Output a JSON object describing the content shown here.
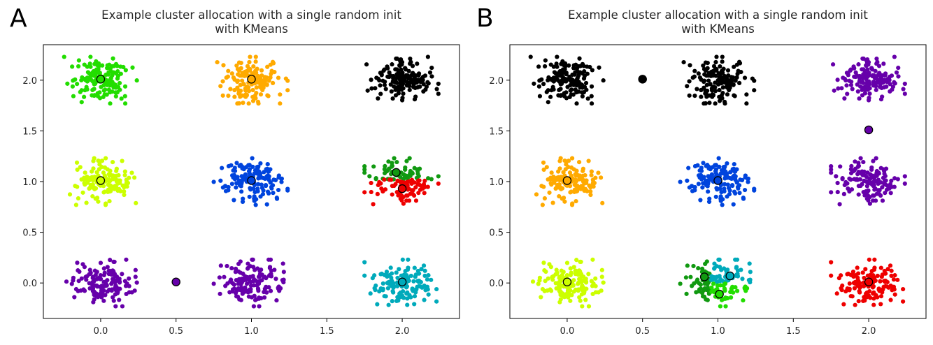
{
  "chart_data": [
    {
      "type": "scatter",
      "panel": "A",
      "title": "Example cluster allocation with a single random init\nwith KMeans",
      "xlabel": "",
      "ylabel": "",
      "xlim": [
        -0.38,
        2.38
      ],
      "ylim": [
        -0.35,
        2.35
      ],
      "xticks": [
        0.0,
        0.5,
        1.0,
        1.5,
        2.0
      ],
      "yticks": [
        0.0,
        0.5,
        1.0,
        1.5,
        2.0
      ],
      "grid": false,
      "clusters": [
        {
          "blob": [
            0,
            2
          ],
          "color": "#22dd00"
        },
        {
          "blob": [
            1,
            2
          ],
          "color": "#ffaa00"
        },
        {
          "blob": [
            2,
            2
          ],
          "color": "#000000"
        },
        {
          "blob": [
            0,
            1
          ],
          "color": "#ccff00"
        },
        {
          "blob": [
            1,
            1
          ],
          "color": "#0044dd"
        },
        {
          "blob": [
            2,
            1
          ],
          "color": "#119911",
          "yrange": [
            1.02,
            1.25
          ]
        },
        {
          "blob": [
            2,
            1
          ],
          "color": "#ee0000",
          "yrange": [
            0.75,
            1.02
          ]
        },
        {
          "blob": [
            0,
            0
          ],
          "color": "#6600aa"
        },
        {
          "blob": [
            1,
            0
          ],
          "color": "#6600aa"
        },
        {
          "blob": [
            2,
            0
          ],
          "color": "#00aabb"
        }
      ],
      "centers": [
        {
          "x": 0.0,
          "y": 2.01,
          "color": "#22dd00"
        },
        {
          "x": 1.0,
          "y": 2.01,
          "color": "#ffaa00"
        },
        {
          "x": 2.0,
          "y": 2.01,
          "color": "#000000"
        },
        {
          "x": 0.0,
          "y": 1.01,
          "color": "#ccff00"
        },
        {
          "x": 1.0,
          "y": 1.01,
          "color": "#0044dd"
        },
        {
          "x": 1.96,
          "y": 1.09,
          "color": "#119911"
        },
        {
          "x": 2.0,
          "y": 0.93,
          "color": "#ee0000"
        },
        {
          "x": 0.5,
          "y": 0.01,
          "color": "#6600aa"
        },
        {
          "x": 2.0,
          "y": 0.01,
          "color": "#00aabb"
        }
      ]
    },
    {
      "type": "scatter",
      "panel": "B",
      "title": "Example cluster allocation with a single random init\nwith KMeans",
      "xlabel": "",
      "ylabel": "",
      "xlim": [
        -0.38,
        2.38
      ],
      "ylim": [
        -0.35,
        2.35
      ],
      "xticks": [
        0.0,
        0.5,
        1.0,
        1.5,
        2.0
      ],
      "yticks": [
        0.0,
        0.5,
        1.0,
        1.5,
        2.0
      ],
      "grid": false,
      "clusters": [
        {
          "blob": [
            0,
            2
          ],
          "color": "#000000"
        },
        {
          "blob": [
            1,
            2
          ],
          "color": "#000000"
        },
        {
          "blob": [
            2,
            2
          ],
          "color": "#6600aa"
        },
        {
          "blob": [
            0,
            1
          ],
          "color": "#ffaa00"
        },
        {
          "blob": [
            1,
            1
          ],
          "color": "#0044dd"
        },
        {
          "blob": [
            2,
            1
          ],
          "color": "#6600aa"
        },
        {
          "blob": [
            0,
            0
          ],
          "color": "#ccff00"
        },
        {
          "blob": [
            1,
            0
          ],
          "color": "#119911",
          "xrange": [
            0.75,
            0.95
          ]
        },
        {
          "blob": [
            1,
            0
          ],
          "color": "#00aabb",
          "xrange": [
            0.95,
            1.25
          ],
          "yrange": [
            0.0,
            0.25
          ]
        },
        {
          "blob": [
            1,
            0
          ],
          "color": "#22dd00",
          "xrange": [
            0.95,
            1.25
          ],
          "yrange": [
            -0.25,
            0.0
          ]
        },
        {
          "blob": [
            2,
            0
          ],
          "color": "#ee0000"
        }
      ],
      "centers": [
        {
          "x": 0.5,
          "y": 2.01,
          "color": "#000000"
        },
        {
          "x": 2.0,
          "y": 1.51,
          "color": "#6600aa"
        },
        {
          "x": 0.0,
          "y": 1.01,
          "color": "#ffaa00"
        },
        {
          "x": 1.0,
          "y": 1.01,
          "color": "#0044dd"
        },
        {
          "x": 0.0,
          "y": 0.01,
          "color": "#ccff00"
        },
        {
          "x": 0.91,
          "y": 0.06,
          "color": "#119911"
        },
        {
          "x": 1.08,
          "y": 0.07,
          "color": "#00aabb"
        },
        {
          "x": 1.01,
          "y": -0.11,
          "color": "#22dd00"
        },
        {
          "x": 2.0,
          "y": 0.01,
          "color": "#ee0000"
        }
      ]
    }
  ]
}
